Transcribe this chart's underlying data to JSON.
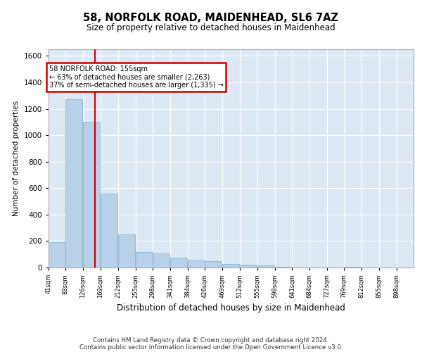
{
  "title1": "58, NORFOLK ROAD, MAIDENHEAD, SL6 7AZ",
  "title2": "Size of property relative to detached houses in Maidenhead",
  "xlabel": "Distribution of detached houses by size in Maidenhead",
  "ylabel": "Number of detached properties",
  "footer1": "Contains HM Land Registry data © Crown copyright and database right 2024.",
  "footer2": "Contains public sector information licensed under the Open Government Licence v3.0.",
  "annotation_line1": "58 NORFOLK ROAD: 155sqm",
  "annotation_line2": "← 63% of detached houses are smaller (2,263)",
  "annotation_line3": "37% of semi-detached houses are larger (1,335) →",
  "bar_color": "#b8d0e8",
  "bar_edge_color": "#7aaace",
  "background_color": "#dce9f5",
  "grid_color": "#ffffff",
  "property_line_color": "#cc0000",
  "annotation_box_color": "#ffffff",
  "annotation_box_edge": "#cc0000",
  "bins": [
    41,
    83,
    126,
    169,
    212,
    255,
    298,
    341,
    384,
    426,
    469,
    512,
    555,
    598,
    641,
    684,
    727,
    769,
    812,
    855,
    898
  ],
  "values": [
    190,
    1270,
    1100,
    560,
    250,
    115,
    105,
    75,
    55,
    48,
    28,
    20,
    18,
    5,
    0,
    0,
    0,
    5,
    0,
    0,
    0
  ],
  "property_size": 155,
  "ylim": [
    0,
    1650
  ],
  "yticks": [
    0,
    200,
    400,
    600,
    800,
    1000,
    1200,
    1400,
    1600
  ]
}
